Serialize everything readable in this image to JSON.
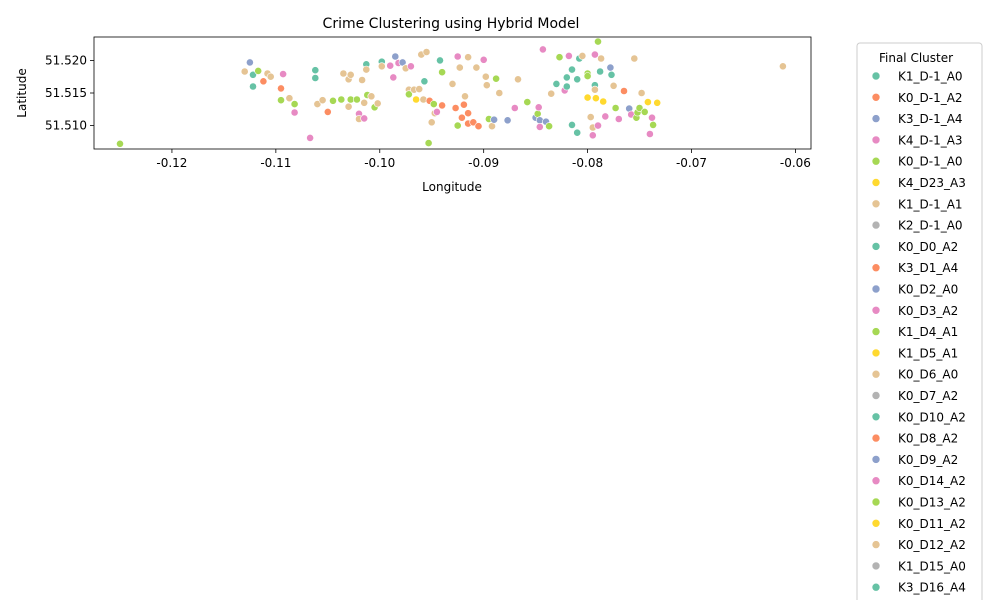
{
  "chart_data": {
    "type": "scatter",
    "title": "Crime Clustering using Hybrid Model",
    "xlabel": "Longitude",
    "ylabel": "Latitude",
    "xlim": [
      -0.1275,
      -0.0585
    ],
    "ylim": [
      51.5064,
      51.5236
    ],
    "xticks": [
      "-0.12",
      "-0.11",
      "-0.10",
      "-0.09",
      "-0.08",
      "-0.07",
      "-0.06"
    ],
    "xtick_values": [
      -0.12,
      -0.11,
      -0.1,
      -0.09,
      -0.08,
      -0.07,
      -0.06
    ],
    "yticks": [
      "51.510",
      "51.515",
      "51.520"
    ],
    "ytick_values": [
      51.51,
      51.515,
      51.52
    ],
    "grid": false,
    "legend_position": "right, outside plot",
    "legend": {
      "title": "Final Cluster",
      "entries": [
        {
          "label": "K1_D-1_A0",
          "color": "#66c2a5"
        },
        {
          "label": "K0_D-1_A2",
          "color": "#fc8d62"
        },
        {
          "label": "K3_D-1_A4",
          "color": "#8da0cb"
        },
        {
          "label": "K4_D-1_A3",
          "color": "#e78ac3"
        },
        {
          "label": "K0_D-1_A0",
          "color": "#a6d854"
        },
        {
          "label": "K4_D23_A3",
          "color": "#ffd92f"
        },
        {
          "label": "K1_D-1_A1",
          "color": "#e5c494"
        },
        {
          "label": "K2_D-1_A0",
          "color": "#b3b3b3"
        },
        {
          "label": "K0_D0_A2",
          "color": "#66c2a5"
        },
        {
          "label": "K3_D1_A4",
          "color": "#fc8d62"
        },
        {
          "label": "K0_D2_A0",
          "color": "#8da0cb"
        },
        {
          "label": "K0_D3_A2",
          "color": "#e78ac3"
        },
        {
          "label": "K1_D4_A1",
          "color": "#a6d854"
        },
        {
          "label": "K1_D5_A1",
          "color": "#ffd92f"
        },
        {
          "label": "K0_D6_A0",
          "color": "#e5c494"
        },
        {
          "label": "K0_D7_A2",
          "color": "#b3b3b3"
        },
        {
          "label": "K0_D10_A2",
          "color": "#66c2a5"
        },
        {
          "label": "K0_D8_A2",
          "color": "#fc8d62"
        },
        {
          "label": "K0_D9_A2",
          "color": "#8da0cb"
        },
        {
          "label": "K0_D14_A2",
          "color": "#e78ac3"
        },
        {
          "label": "K0_D13_A2",
          "color": "#a6d854"
        },
        {
          "label": "K0_D11_A2",
          "color": "#ffd92f"
        },
        {
          "label": "K0_D12_A2",
          "color": "#e5c494"
        },
        {
          "label": "K1_D15_A0",
          "color": "#b3b3b3"
        },
        {
          "label": "K3_D16_A4",
          "color": "#66c2a5"
        }
      ]
    },
    "points": [
      {
        "x": -0.125,
        "y": 51.5072,
        "c": "#a6d854"
      },
      {
        "x": -0.113,
        "y": 51.5183,
        "c": "#e5c494"
      },
      {
        "x": -0.1125,
        "y": 51.5197,
        "c": "#8da0cb"
      },
      {
        "x": -0.1122,
        "y": 51.5178,
        "c": "#66c2a5"
      },
      {
        "x": -0.1122,
        "y": 51.516,
        "c": "#66c2a5"
      },
      {
        "x": -0.1117,
        "y": 51.5184,
        "c": "#a6d854"
      },
      {
        "x": -0.1112,
        "y": 51.5168,
        "c": "#fc8d62"
      },
      {
        "x": -0.1108,
        "y": 51.518,
        "c": "#e5c494"
      },
      {
        "x": -0.1105,
        "y": 51.5175,
        "c": "#e5c494"
      },
      {
        "x": -0.1095,
        "y": 51.5139,
        "c": "#a6d854"
      },
      {
        "x": -0.1093,
        "y": 51.5179,
        "c": "#e78ac3"
      },
      {
        "x": -0.1095,
        "y": 51.5157,
        "c": "#fc8d62"
      },
      {
        "x": -0.1087,
        "y": 51.5142,
        "c": "#e5c494"
      },
      {
        "x": -0.1082,
        "y": 51.5133,
        "c": "#a6d854"
      },
      {
        "x": -0.1082,
        "y": 51.512,
        "c": "#e78ac3"
      },
      {
        "x": -0.1067,
        "y": 51.5081,
        "c": "#e78ac3"
      },
      {
        "x": -0.1062,
        "y": 51.5173,
        "c": "#66c2a5"
      },
      {
        "x": -0.1062,
        "y": 51.5185,
        "c": "#66c2a5"
      },
      {
        "x": -0.106,
        "y": 51.5133,
        "c": "#e5c494"
      },
      {
        "x": -0.1055,
        "y": 51.5139,
        "c": "#e5c494"
      },
      {
        "x": -0.105,
        "y": 51.5121,
        "c": "#fc8d62"
      },
      {
        "x": -0.1045,
        "y": 51.5138,
        "c": "#a6d854"
      },
      {
        "x": -0.1037,
        "y": 51.514,
        "c": "#a6d854"
      },
      {
        "x": -0.1035,
        "y": 51.518,
        "c": "#e5c494"
      },
      {
        "x": -0.103,
        "y": 51.5171,
        "c": "#e5c494"
      },
      {
        "x": -0.1028,
        "y": 51.5178,
        "c": "#e5c494"
      },
      {
        "x": -0.103,
        "y": 51.5129,
        "c": "#e5c494"
      },
      {
        "x": -0.1028,
        "y": 51.514,
        "c": "#a6d854"
      },
      {
        "x": -0.1022,
        "y": 51.514,
        "c": "#a6d854"
      },
      {
        "x": -0.102,
        "y": 51.5118,
        "c": "#e78ac3"
      },
      {
        "x": -0.102,
        "y": 51.511,
        "c": "#e5c494"
      },
      {
        "x": -0.1017,
        "y": 51.517,
        "c": "#e5c494"
      },
      {
        "x": -0.1015,
        "y": 51.5135,
        "c": "#e5c494"
      },
      {
        "x": -0.1015,
        "y": 51.5111,
        "c": "#e78ac3"
      },
      {
        "x": -0.1013,
        "y": 51.5194,
        "c": "#66c2a5"
      },
      {
        "x": -0.1013,
        "y": 51.5186,
        "c": "#e5c494"
      },
      {
        "x": -0.1012,
        "y": 51.5147,
        "c": "#a6d854"
      },
      {
        "x": -0.1008,
        "y": 51.5145,
        "c": "#e5c494"
      },
      {
        "x": -0.1005,
        "y": 51.5128,
        "c": "#a6d854"
      },
      {
        "x": -0.1002,
        "y": 51.5134,
        "c": "#e5c494"
      },
      {
        "x": -0.0998,
        "y": 51.5198,
        "c": "#66c2a5"
      },
      {
        "x": -0.0998,
        "y": 51.5191,
        "c": "#e5c494"
      },
      {
        "x": -0.099,
        "y": 51.5192,
        "c": "#e78ac3"
      },
      {
        "x": -0.0987,
        "y": 51.5174,
        "c": "#e78ac3"
      },
      {
        "x": -0.0985,
        "y": 51.5206,
        "c": "#8da0cb"
      },
      {
        "x": -0.0982,
        "y": 51.5196,
        "c": "#e78ac3"
      },
      {
        "x": -0.0978,
        "y": 51.5197,
        "c": "#8da0cb"
      },
      {
        "x": -0.0975,
        "y": 51.5188,
        "c": "#e5c494"
      },
      {
        "x": -0.0972,
        "y": 51.5155,
        "c": "#e5c494"
      },
      {
        "x": -0.0972,
        "y": 51.5148,
        "c": "#a6d854"
      },
      {
        "x": -0.097,
        "y": 51.5191,
        "c": "#e78ac3"
      },
      {
        "x": -0.0967,
        "y": 51.5155,
        "c": "#e5c494"
      },
      {
        "x": -0.0965,
        "y": 51.514,
        "c": "#ffd92f"
      },
      {
        "x": -0.0962,
        "y": 51.5156,
        "c": "#e5c494"
      },
      {
        "x": -0.096,
        "y": 51.5209,
        "c": "#e5c494"
      },
      {
        "x": -0.0958,
        "y": 51.514,
        "c": "#e5c494"
      },
      {
        "x": -0.0957,
        "y": 51.5168,
        "c": "#66c2a5"
      },
      {
        "x": -0.0955,
        "y": 51.5213,
        "c": "#e5c494"
      },
      {
        "x": -0.0953,
        "y": 51.5073,
        "c": "#a6d854"
      },
      {
        "x": -0.0952,
        "y": 51.5138,
        "c": "#fc8d62"
      },
      {
        "x": -0.095,
        "y": 51.5105,
        "c": "#e5c494"
      },
      {
        "x": -0.0948,
        "y": 51.5133,
        "c": "#a6d854"
      },
      {
        "x": -0.0947,
        "y": 51.5119,
        "c": "#e5c494"
      },
      {
        "x": -0.0945,
        "y": 51.5121,
        "c": "#e78ac3"
      },
      {
        "x": -0.0942,
        "y": 51.52,
        "c": "#66c2a5"
      },
      {
        "x": -0.094,
        "y": 51.5182,
        "c": "#a6d854"
      },
      {
        "x": -0.094,
        "y": 51.5131,
        "c": "#fc8d62"
      },
      {
        "x": -0.093,
        "y": 51.5164,
        "c": "#e5c494"
      },
      {
        "x": -0.0927,
        "y": 51.5127,
        "c": "#fc8d62"
      },
      {
        "x": -0.0925,
        "y": 51.5206,
        "c": "#e78ac3"
      },
      {
        "x": -0.0925,
        "y": 51.51,
        "c": "#a6d854"
      },
      {
        "x": -0.0923,
        "y": 51.5189,
        "c": "#e5c494"
      },
      {
        "x": -0.0921,
        "y": 51.5112,
        "c": "#fc8d62"
      },
      {
        "x": -0.0919,
        "y": 51.5132,
        "c": "#fc8d62"
      },
      {
        "x": -0.0918,
        "y": 51.5145,
        "c": "#e5c494"
      },
      {
        "x": -0.0915,
        "y": 51.5205,
        "c": "#e5c494"
      },
      {
        "x": -0.0915,
        "y": 51.5119,
        "c": "#fc8d62"
      },
      {
        "x": -0.0915,
        "y": 51.5103,
        "c": "#fc8d62"
      },
      {
        "x": -0.091,
        "y": 51.5105,
        "c": "#fc8d62"
      },
      {
        "x": -0.0907,
        "y": 51.5189,
        "c": "#e5c494"
      },
      {
        "x": -0.0905,
        "y": 51.5099,
        "c": "#fc8d62"
      },
      {
        "x": -0.09,
        "y": 51.5201,
        "c": "#e78ac3"
      },
      {
        "x": -0.0898,
        "y": 51.5175,
        "c": "#e5c494"
      },
      {
        "x": -0.0897,
        "y": 51.5162,
        "c": "#e5c494"
      },
      {
        "x": -0.0895,
        "y": 51.511,
        "c": "#a6d854"
      },
      {
        "x": -0.0892,
        "y": 51.5099,
        "c": "#e5c494"
      },
      {
        "x": -0.089,
        "y": 51.5109,
        "c": "#8da0cb"
      },
      {
        "x": -0.0888,
        "y": 51.5172,
        "c": "#a6d854"
      },
      {
        "x": -0.0885,
        "y": 51.515,
        "c": "#e5c494"
      },
      {
        "x": -0.0877,
        "y": 51.5108,
        "c": "#8da0cb"
      },
      {
        "x": -0.087,
        "y": 51.5127,
        "c": "#e78ac3"
      },
      {
        "x": -0.0867,
        "y": 51.5171,
        "c": "#e5c494"
      },
      {
        "x": -0.0858,
        "y": 51.5136,
        "c": "#a6d854"
      },
      {
        "x": -0.085,
        "y": 51.5112,
        "c": "#8da0cb"
      },
      {
        "x": -0.0848,
        "y": 51.5118,
        "c": "#a6d854"
      },
      {
        "x": -0.0847,
        "y": 51.5128,
        "c": "#e78ac3"
      },
      {
        "x": -0.0846,
        "y": 51.5108,
        "c": "#8da0cb"
      },
      {
        "x": -0.0846,
        "y": 51.5098,
        "c": "#e78ac3"
      },
      {
        "x": -0.0843,
        "y": 51.5217,
        "c": "#e78ac3"
      },
      {
        "x": -0.084,
        "y": 51.5106,
        "c": "#8da0cb"
      },
      {
        "x": -0.0837,
        "y": 51.5099,
        "c": "#a6d854"
      },
      {
        "x": -0.0835,
        "y": 51.5149,
        "c": "#e5c494"
      },
      {
        "x": -0.083,
        "y": 51.5164,
        "c": "#66c2a5"
      },
      {
        "x": -0.0827,
        "y": 51.5205,
        "c": "#a6d854"
      },
      {
        "x": -0.0822,
        "y": 51.5154,
        "c": "#e78ac3"
      },
      {
        "x": -0.082,
        "y": 51.5174,
        "c": "#66c2a5"
      },
      {
        "x": -0.082,
        "y": 51.516,
        "c": "#66c2a5"
      },
      {
        "x": -0.0818,
        "y": 51.5207,
        "c": "#e78ac3"
      },
      {
        "x": -0.0815,
        "y": 51.5186,
        "c": "#66c2a5"
      },
      {
        "x": -0.0815,
        "y": 51.5101,
        "c": "#66c2a5"
      },
      {
        "x": -0.081,
        "y": 51.5171,
        "c": "#66c2a5"
      },
      {
        "x": -0.081,
        "y": 51.5089,
        "c": "#66c2a5"
      },
      {
        "x": -0.0808,
        "y": 51.5203,
        "c": "#66c2a5"
      },
      {
        "x": -0.0805,
        "y": 51.5207,
        "c": "#e5c494"
      },
      {
        "x": -0.08,
        "y": 51.518,
        "c": "#a6d854"
      },
      {
        "x": -0.08,
        "y": 51.5176,
        "c": "#a6d854"
      },
      {
        "x": -0.08,
        "y": 51.5143,
        "c": "#ffd92f"
      },
      {
        "x": -0.0797,
        "y": 51.5113,
        "c": "#e5c494"
      },
      {
        "x": -0.0795,
        "y": 51.5097,
        "c": "#e5c494"
      },
      {
        "x": -0.0795,
        "y": 51.5085,
        "c": "#e78ac3"
      },
      {
        "x": -0.0793,
        "y": 51.5209,
        "c": "#e78ac3"
      },
      {
        "x": -0.0793,
        "y": 51.5162,
        "c": "#66c2a5"
      },
      {
        "x": -0.0793,
        "y": 51.5155,
        "c": "#e5c494"
      },
      {
        "x": -0.0792,
        "y": 51.5142,
        "c": "#ffd92f"
      },
      {
        "x": -0.079,
        "y": 51.5229,
        "c": "#a6d854"
      },
      {
        "x": -0.079,
        "y": 51.51,
        "c": "#e78ac3"
      },
      {
        "x": -0.0788,
        "y": 51.5183,
        "c": "#66c2a5"
      },
      {
        "x": -0.0787,
        "y": 51.5203,
        "c": "#e5c494"
      },
      {
        "x": -0.0785,
        "y": 51.5137,
        "c": "#ffd92f"
      },
      {
        "x": -0.0783,
        "y": 51.5114,
        "c": "#e78ac3"
      },
      {
        "x": -0.0778,
        "y": 51.5189,
        "c": "#8da0cb"
      },
      {
        "x": -0.0777,
        "y": 51.5178,
        "c": "#66c2a5"
      },
      {
        "x": -0.0775,
        "y": 51.5161,
        "c": "#e5c494"
      },
      {
        "x": -0.0773,
        "y": 51.5127,
        "c": "#a6d854"
      },
      {
        "x": -0.077,
        "y": 51.511,
        "c": "#e78ac3"
      },
      {
        "x": -0.0765,
        "y": 51.5153,
        "c": "#fc8d62"
      },
      {
        "x": -0.076,
        "y": 51.5126,
        "c": "#8da0cb"
      },
      {
        "x": -0.0758,
        "y": 51.5117,
        "c": "#e78ac3"
      },
      {
        "x": -0.0755,
        "y": 51.5203,
        "c": "#e5c494"
      },
      {
        "x": -0.0753,
        "y": 51.5112,
        "c": "#a6d854"
      },
      {
        "x": -0.0752,
        "y": 51.512,
        "c": "#a6d854"
      },
      {
        "x": -0.075,
        "y": 51.5127,
        "c": "#a6d854"
      },
      {
        "x": -0.0748,
        "y": 51.515,
        "c": "#e5c494"
      },
      {
        "x": -0.0745,
        "y": 51.5121,
        "c": "#a6d854"
      },
      {
        "x": -0.0742,
        "y": 51.5136,
        "c": "#ffd92f"
      },
      {
        "x": -0.074,
        "y": 51.5087,
        "c": "#e78ac3"
      },
      {
        "x": -0.0738,
        "y": 51.5112,
        "c": "#e78ac3"
      },
      {
        "x": -0.0737,
        "y": 51.5101,
        "c": "#a6d854"
      },
      {
        "x": -0.0733,
        "y": 51.5135,
        "c": "#ffd92f"
      },
      {
        "x": -0.0612,
        "y": 51.5191,
        "c": "#e5c494"
      }
    ]
  }
}
